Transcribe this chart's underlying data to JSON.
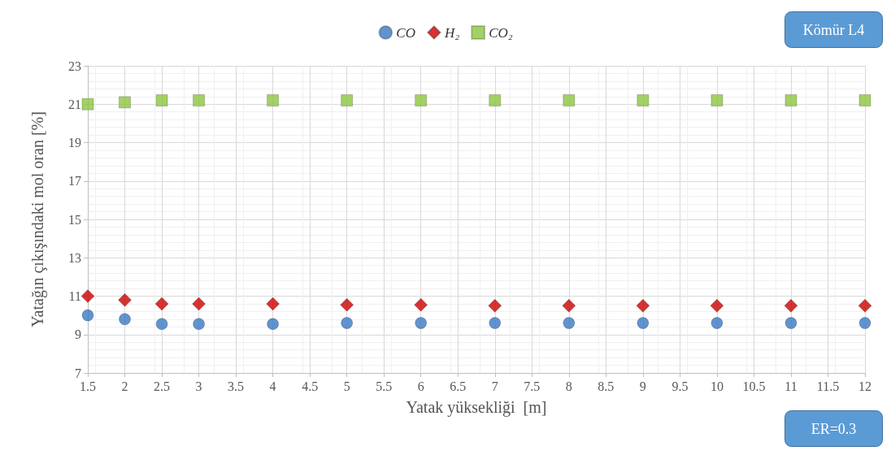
{
  "chart_data": {
    "type": "scatter",
    "xlabel": "Yatak yüksekliği  [m]",
    "ylabel": "Yatağın çıkışındaki mol oran [%]",
    "x": [
      1.5,
      2,
      2.5,
      3,
      4,
      5,
      6,
      7,
      8,
      9,
      10,
      11,
      12
    ],
    "series": [
      {
        "name": "CO",
        "color": "#3a78c4",
        "marker": "circle",
        "values": [
          10.0,
          9.8,
          9.55,
          9.55,
          9.55,
          9.6,
          9.6,
          9.6,
          9.6,
          9.6,
          9.6,
          9.6,
          9.6
        ]
      },
      {
        "name": "H₂",
        "color": "#cc0000",
        "marker": "diamond",
        "values": [
          11.0,
          10.8,
          10.6,
          10.6,
          10.6,
          10.55,
          10.55,
          10.5,
          10.5,
          10.5,
          10.5,
          10.5,
          10.5
        ]
      },
      {
        "name": "CO₂",
        "color": "#8cc63f",
        "marker": "square",
        "values": [
          21.0,
          21.1,
          21.2,
          21.2,
          21.2,
          21.2,
          21.2,
          21.2,
          21.2,
          21.2,
          21.2,
          21.2,
          21.2
        ]
      }
    ],
    "xlim": [
      1.5,
      12
    ],
    "xticks": [
      1.5,
      2,
      2.5,
      3,
      3.5,
      4,
      4.5,
      5,
      5.5,
      6,
      6.5,
      7,
      7.5,
      8,
      8.5,
      9,
      9.5,
      10,
      10.5,
      11,
      11.5,
      12
    ],
    "ylim": [
      7,
      23
    ],
    "yticks": [
      7,
      9,
      11,
      13,
      15,
      17,
      19,
      21,
      23
    ],
    "grid": true,
    "legend": "top",
    "annotations": [
      "Kömür L4",
      "ER=0.3"
    ]
  }
}
